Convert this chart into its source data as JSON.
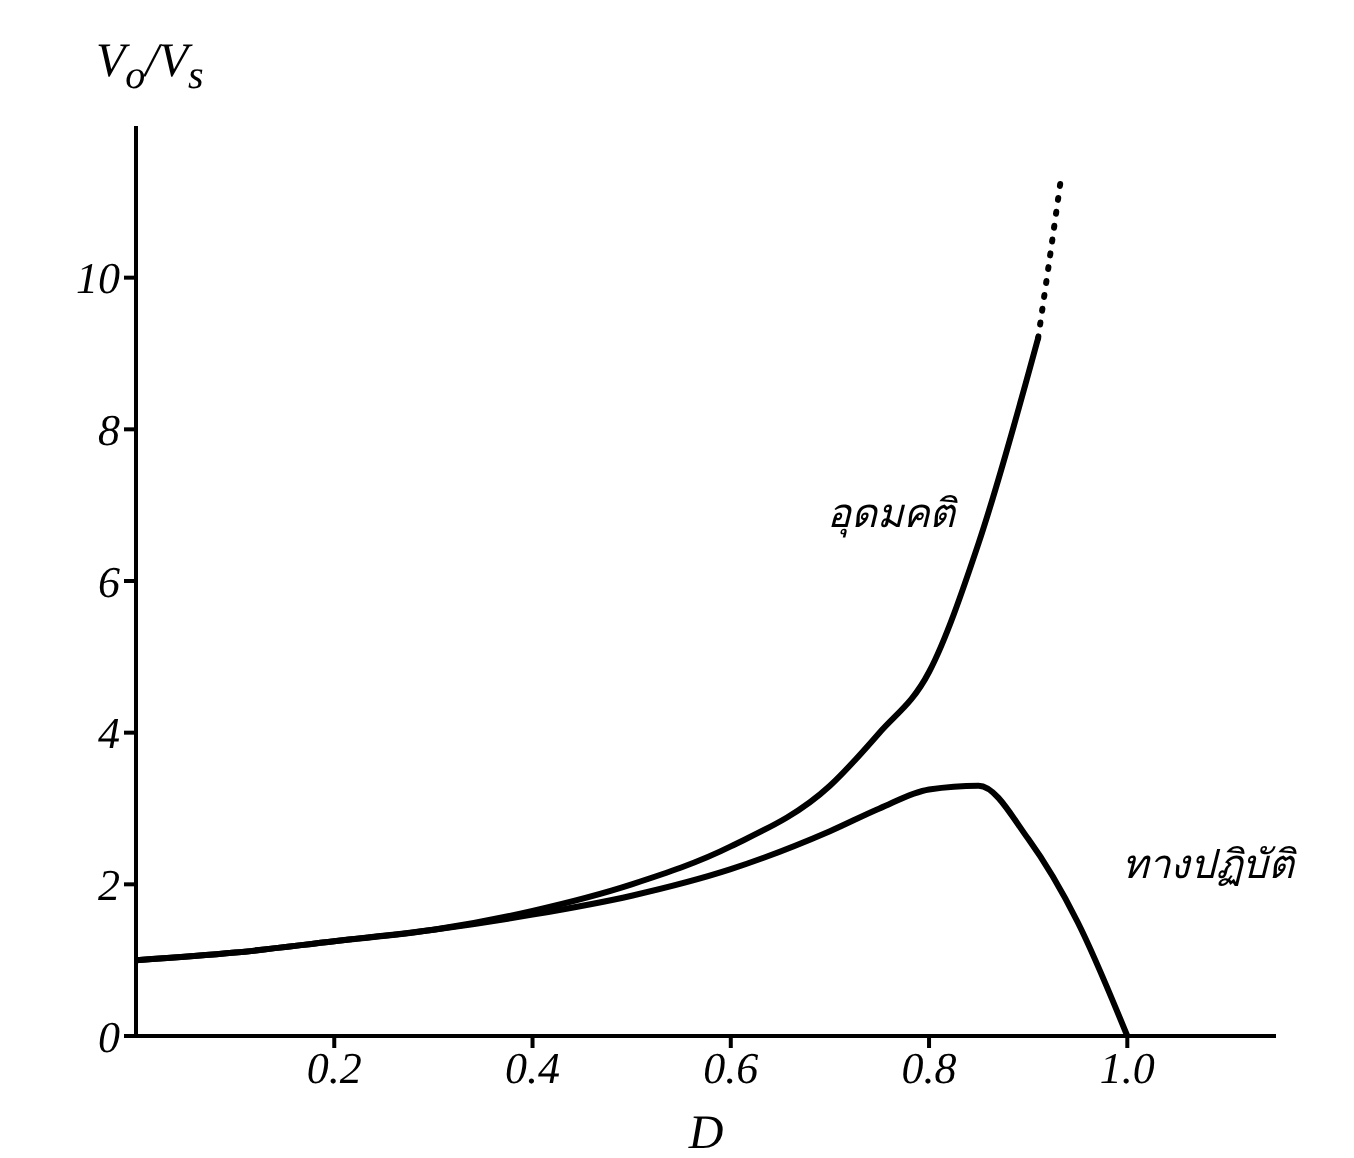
{
  "chart_data": {
    "type": "line",
    "xlabel": "D",
    "ylabel": "V$_{o}$/V$_{s}$",
    "xlim": [
      0,
      1.15
    ],
    "ylim": [
      0,
      12
    ],
    "xticks": [
      0.2,
      0.4,
      0.6,
      0.8,
      {
        "value": 1,
        "label": "1.0"
      }
    ],
    "yticks": [
      0,
      2,
      4,
      6,
      8,
      10
    ],
    "grid": false,
    "marker": "none",
    "series": [
      {
        "name": "อุดมคติ",
        "color": "#000000",
        "line_style": "solid",
        "x": [
          0,
          0.1,
          0.2,
          0.3,
          0.4,
          0.5,
          0.6,
          0.7,
          0.75,
          0.8,
          0.85,
          0.91
        ],
        "values": [
          1,
          1.1,
          1.25,
          1.4,
          1.65,
          2,
          2.5,
          3.3,
          4,
          4.8,
          6.5,
          9.2
        ]
      },
      {
        "color": "#000000",
        "line_style": "dotted",
        "x": [
          0.91,
          0.92,
          0.933
        ],
        "values": [
          9.2,
          10.1,
          11.3
        ]
      },
      {
        "name": "ทางปฏิบัติ",
        "color": "#000000",
        "line_style": "solid",
        "x": [
          0,
          0.1,
          0.2,
          0.3,
          0.4,
          0.5,
          0.6,
          0.7,
          0.75,
          0.8,
          0.85,
          0.9,
          0.95,
          1.0
        ],
        "values": [
          1,
          1.1,
          1.25,
          1.4,
          1.6,
          1.85,
          2.2,
          2.7,
          3.0,
          3.25,
          3.3,
          2.6,
          1.5,
          0
        ]
      }
    ]
  }
}
